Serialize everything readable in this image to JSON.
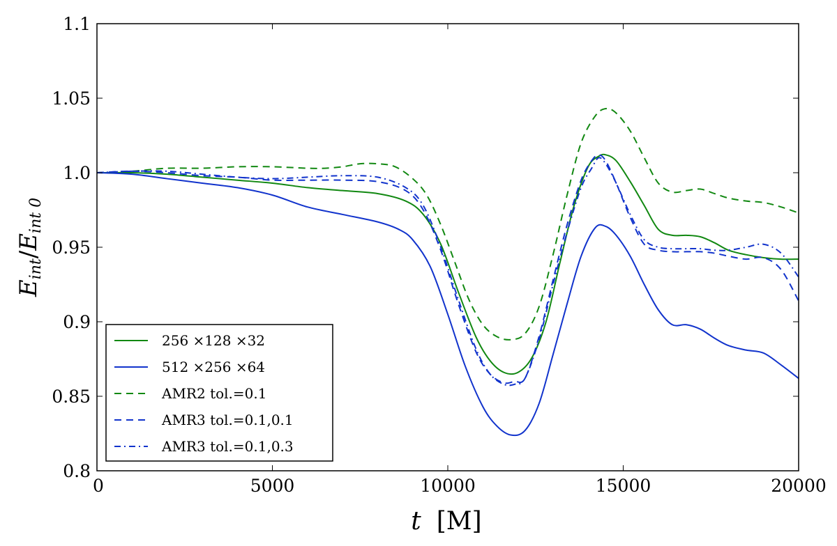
{
  "chart_data": {
    "type": "line",
    "title": "",
    "xlabel": {
      "var": "t",
      "unit": "[M]"
    },
    "ylabel": {
      "base": "E",
      "sub": "int",
      "den_base": "E",
      "den_sub": "int 0"
    },
    "xlim": [
      0,
      20000
    ],
    "ylim": [
      0.8,
      1.1
    ],
    "xticks": [
      0,
      5000,
      10000,
      15000,
      20000
    ],
    "xtick_labels": [
      "0",
      "5000",
      "10000",
      "15000",
      "20000"
    ],
    "yticks": [
      0.8,
      0.85,
      0.9,
      0.95,
      1.0,
      1.05,
      1.1
    ],
    "ytick_labels": [
      "0.8",
      "0.85",
      "0.9",
      "0.95",
      "1.0",
      "1.05",
      "1.1"
    ],
    "grid": false,
    "legend_position": "lower-left",
    "series": [
      {
        "name": "256 ×128 ×32",
        "color": "#118811",
        "style": "solid",
        "x": [
          0,
          1000,
          2000,
          3000,
          4000,
          5000,
          6000,
          7000,
          8000,
          8800,
          9300,
          9800,
          10300,
          10800,
          11200,
          11600,
          12000,
          12400,
          12800,
          13200,
          13600,
          14000,
          14300,
          14500,
          14800,
          15200,
          15600,
          16000,
          16400,
          16800,
          17200,
          17600,
          18000,
          18500,
          19000,
          19500,
          20000
        ],
        "y": [
          1.0,
          1.0,
          0.999,
          0.997,
          0.995,
          0.993,
          0.99,
          0.988,
          0.986,
          0.981,
          0.972,
          0.952,
          0.92,
          0.89,
          0.874,
          0.866,
          0.866,
          0.876,
          0.9,
          0.94,
          0.978,
          1.004,
          1.011,
          1.012,
          1.008,
          0.994,
          0.978,
          0.962,
          0.958,
          0.958,
          0.957,
          0.953,
          0.948,
          0.945,
          0.943,
          0.942,
          0.942
        ]
      },
      {
        "name": "512 ×256 ×64",
        "color": "#1133cc",
        "style": "solid",
        "x": [
          0,
          1000,
          2000,
          3000,
          4000,
          5000,
          6000,
          7000,
          8000,
          8600,
          9000,
          9500,
          10000,
          10500,
          11000,
          11400,
          11800,
          12200,
          12600,
          13000,
          13400,
          13800,
          14200,
          14500,
          14800,
          15200,
          15600,
          16000,
          16400,
          16800,
          17200,
          17600,
          18000,
          18500,
          19000,
          19500,
          20000
        ],
        "y": [
          1.0,
          0.999,
          0.996,
          0.993,
          0.99,
          0.985,
          0.977,
          0.972,
          0.967,
          0.962,
          0.955,
          0.937,
          0.905,
          0.87,
          0.843,
          0.83,
          0.824,
          0.827,
          0.845,
          0.878,
          0.912,
          0.944,
          0.963,
          0.964,
          0.958,
          0.944,
          0.925,
          0.908,
          0.898,
          0.898,
          0.895,
          0.889,
          0.884,
          0.881,
          0.879,
          0.871,
          0.862
        ]
      },
      {
        "name": "AMR2   tol.=0.1",
        "color": "#118811",
        "style": "dashed",
        "x": [
          0,
          1000,
          2000,
          3000,
          4000,
          5000,
          6000,
          6500,
          7000,
          7500,
          8000,
          8500,
          9000,
          9400,
          9800,
          10200,
          10600,
          11000,
          11400,
          11800,
          12200,
          12600,
          13000,
          13400,
          13800,
          14200,
          14500,
          14800,
          15200,
          15600,
          16000,
          16400,
          16800,
          17200,
          17600,
          18000,
          18500,
          19000,
          19500,
          20000
        ],
        "y": [
          1.0,
          1.001,
          1.003,
          1.003,
          1.004,
          1.004,
          1.003,
          1.003,
          1.004,
          1.006,
          1.006,
          1.004,
          0.996,
          0.985,
          0.965,
          0.94,
          0.915,
          0.898,
          0.89,
          0.888,
          0.892,
          0.91,
          0.945,
          0.985,
          1.02,
          1.038,
          1.043,
          1.04,
          1.028,
          1.01,
          0.993,
          0.987,
          0.988,
          0.989,
          0.986,
          0.983,
          0.981,
          0.98,
          0.977,
          0.973
        ]
      },
      {
        "name": "AMR3   tol.=0.1,0.1",
        "color": "#1133cc",
        "style": "dashed",
        "x": [
          0,
          1000,
          2000,
          3000,
          4000,
          5000,
          6000,
          7000,
          8000,
          8800,
          9300,
          9800,
          10300,
          10800,
          11200,
          11600,
          11900,
          12200,
          12600,
          13000,
          13400,
          13800,
          14100,
          14300,
          14500,
          14800,
          15200,
          15600,
          16000,
          16400,
          16800,
          17200,
          17600,
          18000,
          18500,
          19000,
          19500,
          20000
        ],
        "y": [
          1.0,
          1.001,
          1.0,
          0.998,
          0.997,
          0.995,
          0.995,
          0.995,
          0.994,
          0.988,
          0.975,
          0.948,
          0.912,
          0.88,
          0.865,
          0.859,
          0.86,
          0.862,
          0.89,
          0.928,
          0.965,
          0.995,
          1.008,
          1.012,
          1.008,
          0.993,
          0.97,
          0.952,
          0.948,
          0.947,
          0.947,
          0.947,
          0.946,
          0.944,
          0.942,
          0.943,
          0.935,
          0.914
        ]
      },
      {
        "name": "AMR3   tol.=0.1,0.3",
        "color": "#1133cc",
        "style": "dashdot",
        "x": [
          0,
          1000,
          2000,
          3000,
          4000,
          5000,
          6000,
          7000,
          8000,
          8800,
          9300,
          9800,
          10300,
          10800,
          11200,
          11600,
          11900,
          12200,
          12600,
          13000,
          13400,
          13800,
          14100,
          14300,
          14500,
          14800,
          15200,
          15600,
          16000,
          16400,
          16800,
          17200,
          17600,
          18000,
          18500,
          19000,
          19500,
          20000
        ],
        "y": [
          1.0,
          1.001,
          1.001,
          0.999,
          0.997,
          0.996,
          0.997,
          0.998,
          0.997,
          0.99,
          0.978,
          0.95,
          0.915,
          0.882,
          0.865,
          0.858,
          0.858,
          0.862,
          0.888,
          0.925,
          0.96,
          0.99,
          1.003,
          1.01,
          1.006,
          0.993,
          0.972,
          0.955,
          0.95,
          0.949,
          0.949,
          0.949,
          0.948,
          0.948,
          0.95,
          0.952,
          0.946,
          0.93
        ]
      }
    ]
  }
}
